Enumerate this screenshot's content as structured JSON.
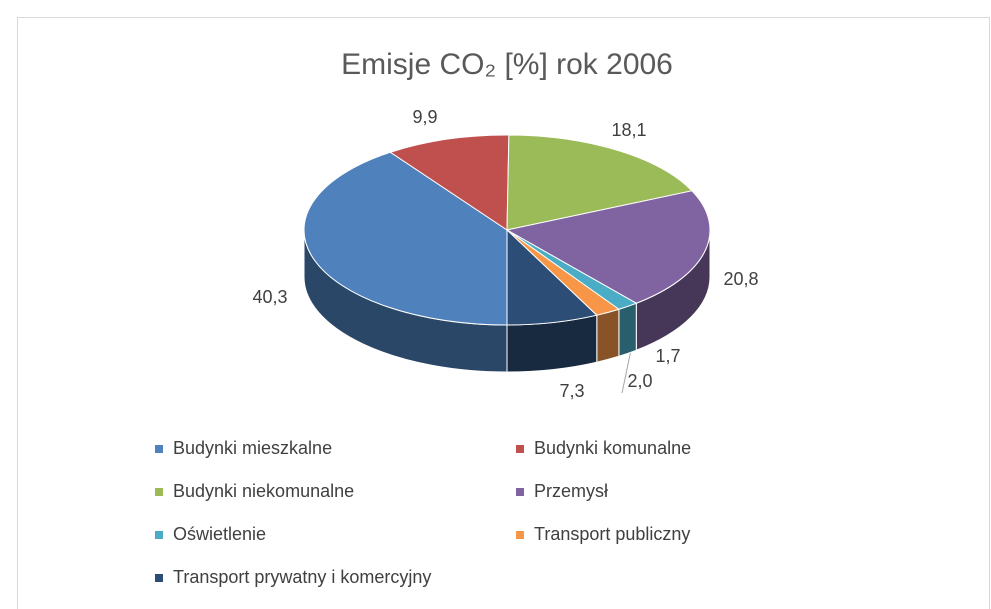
{
  "chart_data": {
    "type": "pie",
    "title": "Emisje CO₂ [%] rok 2006",
    "categories": [
      "Budynki mieszkalne",
      "Budynki komunalne",
      "Budynki niekomunalne",
      "Przemysł",
      "Oświetlenie",
      "Transport publiczny",
      "Transport prywatny i komercyjny"
    ],
    "values": [
      40.3,
      9.9,
      18.1,
      20.8,
      1.7,
      2.0,
      7.3
    ],
    "value_labels": [
      "40,3",
      "9,9",
      "18,1",
      "20,8",
      "1,7",
      "2,0",
      "7,3"
    ],
    "colors": [
      "#4f81bd",
      "#c0504d",
      "#9bbb59",
      "#8064a2",
      "#4bacc6",
      "#f79646",
      "#2c4d75"
    ],
    "legend": "bottom"
  }
}
